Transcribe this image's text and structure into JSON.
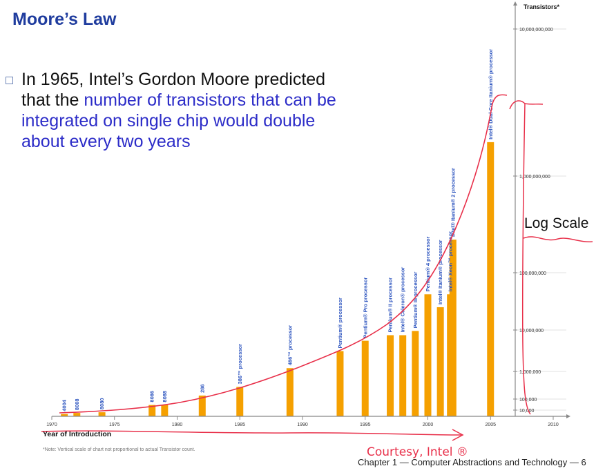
{
  "slide": {
    "title": "Moore’s Law",
    "bullet": {
      "text_before": "In 1965, Intel’s Gordon Moore predicted that the ",
      "text_highlight": "number of transistors that can be integrated on single chip would double about every two years"
    },
    "footer": "Chapter 1 — Computer Abstractions and Technology — 6",
    "annotations": {
      "log_scale": "Log Scale",
      "courtesy": "Courtesy, Intel ®"
    },
    "annotation_color": "#e8304a"
  },
  "chart_data": {
    "type": "bar",
    "xlabel": "Year of Introduction",
    "ylabel": "Transistors*",
    "note": "*Note: Vertical scale of chart not proportional to actual Transistor count.",
    "x_ticks": [
      "1970",
      "1975",
      "1980",
      "1985",
      "1990",
      "1995",
      "2000",
      "2005",
      "2010"
    ],
    "xlim": [
      1970,
      2010
    ],
    "y_ticks": [
      "10,000",
      "100,000",
      "1,000,000",
      "10,000,000",
      "100,000,000",
      "1,000,000,000",
      "10,000,000,000"
    ],
    "y_scale": "nonlinear",
    "bar_color": "#f5a000",
    "label_color": "#2a52be",
    "bars": [
      {
        "year": 1971,
        "label": "4004",
        "transistors": 2300
      },
      {
        "year": 1972,
        "label": "8008",
        "transistors": 3500
      },
      {
        "year": 1974,
        "label": "8080",
        "transistors": 4500
      },
      {
        "year": 1978,
        "label": "8086",
        "transistors": 29000
      },
      {
        "year": 1979,
        "label": "8088",
        "transistors": 29000
      },
      {
        "year": 1982,
        "label": "286",
        "transistors": 134000
      },
      {
        "year": 1985,
        "label": "386™ processor",
        "transistors": 275000
      },
      {
        "year": 1989,
        "label": "486™ processor",
        "transistors": 1200000
      },
      {
        "year": 1993,
        "label": "Pentium® processor",
        "transistors": 3100000
      },
      {
        "year": 1995,
        "label": "Pentium® Pro processor",
        "transistors": 5500000
      },
      {
        "year": 1997,
        "label": "Pentium® II processor",
        "transistors": 7500000
      },
      {
        "year": 1998,
        "label": "Intel® Celeron® processor",
        "transistors": 7500000
      },
      {
        "year": 1999,
        "label": "Pentium® III processor",
        "transistors": 9500000
      },
      {
        "year": 2000,
        "label": "Pentium® 4 processor",
        "transistors": 42000000
      },
      {
        "year": 2001,
        "label": "Intel® Itanium® processor",
        "transistors": 25000000
      },
      {
        "year": 2001.8,
        "label": "Intel® Xeon™ processor",
        "transistors": 42000000
      },
      {
        "year": 2002,
        "label": "Intel® Itanium® 2 processor",
        "transistors": 220000000
      },
      {
        "year": 2005,
        "label": "Intel® Dual Core Itanium® processor",
        "transistors": 1700000000
      }
    ]
  }
}
